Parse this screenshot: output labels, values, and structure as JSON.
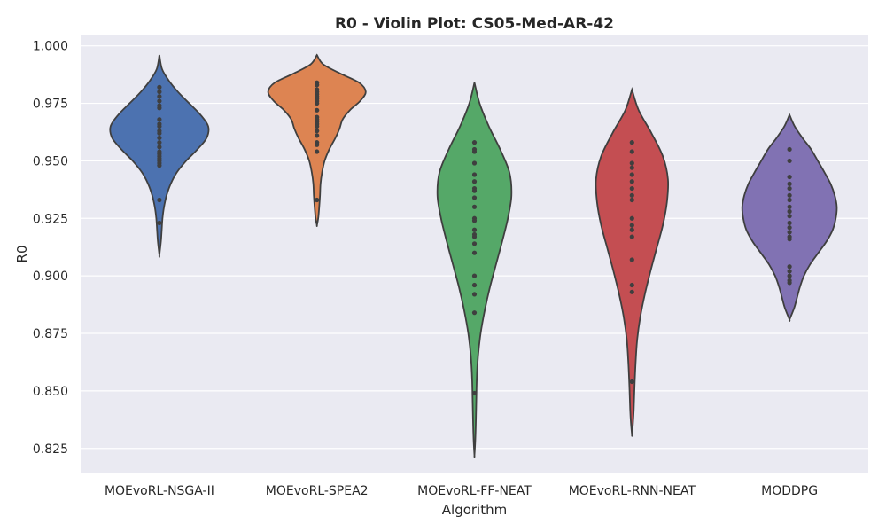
{
  "chart_data": {
    "type": "violin",
    "title": "R0 - Violin Plot: CS05-Med-AR-42",
    "xlabel": "Algorithm",
    "ylabel": "R0",
    "ylim": [
      0.8145,
      1.0045
    ],
    "yticks": [
      "0.825",
      "0.850",
      "0.875",
      "0.900",
      "0.925",
      "0.950",
      "0.975",
      "1.000"
    ],
    "yticks_values": [
      0.825,
      0.85,
      0.875,
      0.9,
      0.925,
      0.95,
      0.975,
      1.0
    ],
    "grid": true,
    "background": "#eaeaf2",
    "categories": [
      "MOEvoRL-NSGA-II",
      "MOEvoRL-SPEA2",
      "MOEvoRL-FF-NEAT",
      "MOEvoRL-RNN-NEAT",
      "MODDPG"
    ],
    "series": [
      {
        "color": "#4c72b0",
        "min": 0.909,
        "max": 0.996,
        "density": [
          [
            0.996,
            0
          ],
          [
            0.99,
            0.05
          ],
          [
            0.985,
            0.18
          ],
          [
            0.98,
            0.36
          ],
          [
            0.975,
            0.58
          ],
          [
            0.97,
            0.8
          ],
          [
            0.965,
            0.95
          ],
          [
            0.96,
            0.92
          ],
          [
            0.955,
            0.74
          ],
          [
            0.95,
            0.52
          ],
          [
            0.945,
            0.34
          ],
          [
            0.94,
            0.22
          ],
          [
            0.935,
            0.14
          ],
          [
            0.93,
            0.09
          ],
          [
            0.925,
            0.06
          ],
          [
            0.92,
            0.045
          ],
          [
            0.915,
            0.03
          ],
          [
            0.909,
            0
          ]
        ],
        "points": [
          0.982,
          0.98,
          0.978,
          0.976,
          0.974,
          0.973,
          0.968,
          0.966,
          0.965,
          0.963,
          0.962,
          0.96,
          0.958,
          0.956,
          0.954,
          0.953,
          0.952,
          0.951,
          0.95,
          0.949,
          0.948,
          0.933,
          0.923
        ]
      },
      {
        "color": "#dd8452",
        "min": 0.922,
        "max": 0.996,
        "density": [
          [
            0.996,
            0
          ],
          [
            0.992,
            0.12
          ],
          [
            0.988,
            0.45
          ],
          [
            0.984,
            0.82
          ],
          [
            0.98,
            0.95
          ],
          [
            0.976,
            0.84
          ],
          [
            0.972,
            0.64
          ],
          [
            0.968,
            0.5
          ],
          [
            0.964,
            0.44
          ],
          [
            0.96,
            0.36
          ],
          [
            0.955,
            0.24
          ],
          [
            0.95,
            0.15
          ],
          [
            0.945,
            0.1
          ],
          [
            0.94,
            0.07
          ],
          [
            0.935,
            0.06
          ],
          [
            0.93,
            0.045
          ],
          [
            0.925,
            0.025
          ],
          [
            0.922,
            0
          ]
        ],
        "points": [
          0.984,
          0.983,
          0.981,
          0.98,
          0.979,
          0.978,
          0.977,
          0.976,
          0.975,
          0.972,
          0.969,
          0.968,
          0.967,
          0.966,
          0.965,
          0.963,
          0.961,
          0.958,
          0.957,
          0.954,
          0.933
        ]
      },
      {
        "color": "#55a868",
        "min": 0.822,
        "max": 0.984,
        "density": [
          [
            0.984,
            0
          ],
          [
            0.975,
            0.1
          ],
          [
            0.965,
            0.28
          ],
          [
            0.955,
            0.5
          ],
          [
            0.945,
            0.68
          ],
          [
            0.935,
            0.72
          ],
          [
            0.925,
            0.65
          ],
          [
            0.915,
            0.54
          ],
          [
            0.905,
            0.42
          ],
          [
            0.895,
            0.3
          ],
          [
            0.885,
            0.2
          ],
          [
            0.875,
            0.12
          ],
          [
            0.865,
            0.07
          ],
          [
            0.855,
            0.045
          ],
          [
            0.845,
            0.035
          ],
          [
            0.835,
            0.025
          ],
          [
            0.828,
            0.015
          ],
          [
            0.822,
            0
          ]
        ],
        "points": [
          0.958,
          0.955,
          0.954,
          0.949,
          0.944,
          0.941,
          0.938,
          0.937,
          0.934,
          0.93,
          0.925,
          0.924,
          0.92,
          0.918,
          0.917,
          0.914,
          0.91,
          0.9,
          0.896,
          0.892,
          0.884,
          0.849
        ]
      },
      {
        "color": "#c44e52",
        "min": 0.831,
        "max": 0.981,
        "density": [
          [
            0.981,
            0
          ],
          [
            0.972,
            0.13
          ],
          [
            0.962,
            0.38
          ],
          [
            0.952,
            0.6
          ],
          [
            0.942,
            0.7
          ],
          [
            0.932,
            0.68
          ],
          [
            0.922,
            0.6
          ],
          [
            0.912,
            0.48
          ],
          [
            0.902,
            0.36
          ],
          [
            0.892,
            0.25
          ],
          [
            0.882,
            0.16
          ],
          [
            0.872,
            0.1
          ],
          [
            0.862,
            0.07
          ],
          [
            0.852,
            0.05
          ],
          [
            0.842,
            0.035
          ],
          [
            0.836,
            0.02
          ],
          [
            0.831,
            0
          ]
        ],
        "points": [
          0.958,
          0.954,
          0.949,
          0.947,
          0.944,
          0.941,
          0.938,
          0.935,
          0.933,
          0.925,
          0.922,
          0.92,
          0.917,
          0.907,
          0.896,
          0.893,
          0.854
        ]
      },
      {
        "color": "#8172b3",
        "min": 0.881,
        "max": 0.97,
        "density": [
          [
            0.97,
            0
          ],
          [
            0.965,
            0.1
          ],
          [
            0.96,
            0.25
          ],
          [
            0.955,
            0.42
          ],
          [
            0.95,
            0.55
          ],
          [
            0.945,
            0.68
          ],
          [
            0.94,
            0.8
          ],
          [
            0.935,
            0.88
          ],
          [
            0.93,
            0.92
          ],
          [
            0.925,
            0.9
          ],
          [
            0.92,
            0.84
          ],
          [
            0.915,
            0.72
          ],
          [
            0.91,
            0.56
          ],
          [
            0.905,
            0.4
          ],
          [
            0.9,
            0.28
          ],
          [
            0.895,
            0.2
          ],
          [
            0.89,
            0.14
          ],
          [
            0.886,
            0.09
          ],
          [
            0.881,
            0
          ]
        ],
        "points": [
          0.955,
          0.95,
          0.943,
          0.94,
          0.938,
          0.935,
          0.933,
          0.93,
          0.928,
          0.926,
          0.923,
          0.921,
          0.919,
          0.917,
          0.916,
          0.904,
          0.902,
          0.9,
          0.898,
          0.897
        ]
      }
    ]
  }
}
